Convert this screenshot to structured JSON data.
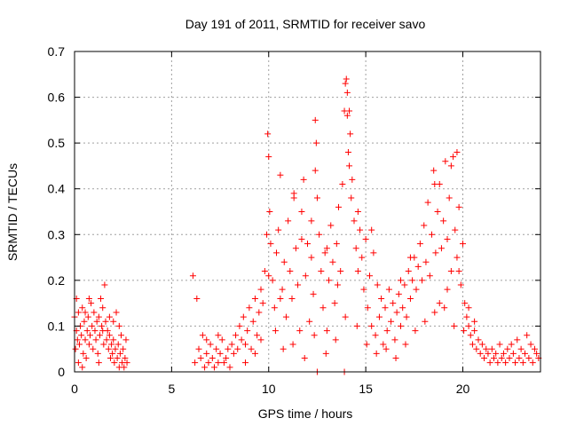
{
  "chart_data": {
    "type": "scatter",
    "title": "Day 191 of 2011, SRMTID for receiver savo",
    "xlabel": "GPS time / hours",
    "ylabel": "SRMTID / TECUs",
    "xlim": [
      0,
      24
    ],
    "ylim": [
      0,
      0.7
    ],
    "xticks": [
      0,
      5,
      10,
      15,
      20
    ],
    "yticks": [
      0,
      0.1,
      0.2,
      0.3,
      0.4,
      0.5,
      0.6,
      0.7
    ],
    "xtick_labels": [
      "0",
      "5",
      "10",
      "15",
      "20"
    ],
    "ytick_labels": [
      "0",
      "0.1",
      "0.2",
      "0.3",
      "0.4",
      "0.5",
      "0.6",
      "0.7"
    ],
    "grid": true,
    "marker": "+",
    "marker_color": "#ff0000",
    "series": [
      {
        "name": "SRMTID",
        "points": [
          [
            0.0,
            0.12
          ],
          [
            0.05,
            0.05
          ],
          [
            0.1,
            0.09
          ],
          [
            0.15,
            0.07
          ],
          [
            0.2,
            0.13
          ],
          [
            0.25,
            0.06
          ],
          [
            0.3,
            0.1
          ],
          [
            0.35,
            0.08
          ],
          [
            0.4,
            0.14
          ],
          [
            0.45,
            0.04
          ],
          [
            0.5,
            0.11
          ],
          [
            0.55,
            0.07
          ],
          [
            0.6,
            0.03
          ],
          [
            0.65,
            0.09
          ],
          [
            0.7,
            0.12
          ],
          [
            0.75,
            0.06
          ],
          [
            0.8,
            0.08
          ],
          [
            0.85,
            0.15
          ],
          [
            0.9,
            0.1
          ],
          [
            0.95,
            0.05
          ],
          [
            1.0,
            0.13
          ],
          [
            1.05,
            0.09
          ],
          [
            1.1,
            0.07
          ],
          [
            1.15,
            0.11
          ],
          [
            1.2,
            0.04
          ],
          [
            1.25,
            0.12
          ],
          [
            1.3,
            0.08
          ],
          [
            1.35,
            0.16
          ],
          [
            1.4,
            0.1
          ],
          [
            1.45,
            0.14
          ],
          [
            1.5,
            0.06
          ],
          [
            1.55,
            0.19
          ],
          [
            1.6,
            0.11
          ],
          [
            1.65,
            0.07
          ],
          [
            1.7,
            0.09
          ],
          [
            1.75,
            0.05
          ],
          [
            1.8,
            0.08
          ],
          [
            1.85,
            0.03
          ],
          [
            1.9,
            0.06
          ],
          [
            1.95,
            0.04
          ],
          [
            2.0,
            0.07
          ],
          [
            2.05,
            0.02
          ],
          [
            2.1,
            0.05
          ],
          [
            2.15,
            0.13
          ],
          [
            2.2,
            0.03
          ],
          [
            2.25,
            0.06
          ],
          [
            2.3,
            0.01
          ],
          [
            2.35,
            0.04
          ],
          [
            2.4,
            0.08
          ],
          [
            2.45,
            0.02
          ],
          [
            2.5,
            0.05
          ],
          [
            2.55,
            0.01
          ],
          [
            2.6,
            0.03
          ],
          [
            2.65,
            0.07
          ],
          [
            2.7,
            0.02
          ],
          [
            0.2,
            0.02
          ],
          [
            0.55,
            0.13
          ],
          [
            1.25,
            0.02
          ],
          [
            0.1,
            0.16
          ],
          [
            1.8,
            0.12
          ],
          [
            2.3,
            0.1
          ],
          [
            0.75,
            0.16
          ],
          [
            1.45,
            0.09
          ],
          [
            0.4,
            0.01
          ],
          [
            2.0,
            0.11
          ],
          [
            6.1,
            0.21
          ],
          [
            6.2,
            0.02
          ],
          [
            6.3,
            0.16
          ],
          [
            6.4,
            0.05
          ],
          [
            6.5,
            0.03
          ],
          [
            6.6,
            0.08
          ],
          [
            6.7,
            0.01
          ],
          [
            6.8,
            0.04
          ],
          [
            6.9,
            0.02
          ],
          [
            7.0,
            0.06
          ],
          [
            7.1,
            0.03
          ],
          [
            7.2,
            0.01
          ],
          [
            7.3,
            0.05
          ],
          [
            7.4,
            0.02
          ],
          [
            7.5,
            0.04
          ],
          [
            7.6,
            0.07
          ],
          [
            7.7,
            0.02
          ],
          [
            7.8,
            0.03
          ],
          [
            7.9,
            0.05
          ],
          [
            8.0,
            0.01
          ],
          [
            8.1,
            0.06
          ],
          [
            8.2,
            0.04
          ],
          [
            8.3,
            0.08
          ],
          [
            8.4,
            0.05
          ],
          [
            8.5,
            0.1
          ],
          [
            8.6,
            0.07
          ],
          [
            8.7,
            0.12
          ],
          [
            8.8,
            0.06
          ],
          [
            8.9,
            0.09
          ],
          [
            9.0,
            0.14
          ],
          [
            9.1,
            0.05
          ],
          [
            9.2,
            0.11
          ],
          [
            9.3,
            0.16
          ],
          [
            9.4,
            0.08
          ],
          [
            9.5,
            0.13
          ],
          [
            9.6,
            0.07
          ],
          [
            9.7,
            0.15
          ],
          [
            9.8,
            0.22
          ],
          [
            9.9,
            0.3
          ],
          [
            9.95,
            0.52
          ],
          [
            10.0,
            0.47
          ],
          [
            10.05,
            0.35
          ],
          [
            10.1,
            0.28
          ],
          [
            10.2,
            0.2
          ],
          [
            10.3,
            0.14
          ],
          [
            10.4,
            0.26
          ],
          [
            10.5,
            0.31
          ],
          [
            10.6,
            0.43
          ],
          [
            10.7,
            0.18
          ],
          [
            10.8,
            0.24
          ],
          [
            10.9,
            0.12
          ],
          [
            11.0,
            0.33
          ],
          [
            11.1,
            0.22
          ],
          [
            11.2,
            0.16
          ],
          [
            11.3,
            0.38
          ],
          [
            11.4,
            0.27
          ],
          [
            11.5,
            0.19
          ],
          [
            11.6,
            0.09
          ],
          [
            11.7,
            0.35
          ],
          [
            11.8,
            0.42
          ],
          [
            11.9,
            0.21
          ],
          [
            12.0,
            0.28
          ],
          [
            12.1,
            0.11
          ],
          [
            12.2,
            0.25
          ],
          [
            12.3,
            0.17
          ],
          [
            12.4,
            0.55
          ],
          [
            12.45,
            0.5
          ],
          [
            12.5,
            0.38
          ],
          [
            12.6,
            0.3
          ],
          [
            12.7,
            0.22
          ],
          [
            12.8,
            0.14
          ],
          [
            12.9,
            0.26
          ],
          [
            13.0,
            0.09
          ],
          [
            13.1,
            0.2
          ],
          [
            13.2,
            0.32
          ],
          [
            13.3,
            0.24
          ],
          [
            13.4,
            0.15
          ],
          [
            13.5,
            0.28
          ],
          [
            13.6,
            0.36
          ],
          [
            13.7,
            0.22
          ],
          [
            13.8,
            0.41
          ],
          [
            13.9,
            0.57
          ],
          [
            14.0,
            0.64
          ],
          [
            14.05,
            0.61
          ],
          [
            14.1,
            0.48
          ],
          [
            14.15,
            0.45
          ],
          [
            14.2,
            0.52
          ],
          [
            14.25,
            0.38
          ],
          [
            14.3,
            0.42
          ],
          [
            14.4,
            0.33
          ],
          [
            14.5,
            0.27
          ],
          [
            14.6,
            0.22
          ],
          [
            14.7,
            0.31
          ],
          [
            14.8,
            0.25
          ],
          [
            14.9,
            0.18
          ],
          [
            15.0,
            0.29
          ],
          [
            15.1,
            0.14
          ],
          [
            15.2,
            0.21
          ],
          [
            15.3,
            0.1
          ],
          [
            15.4,
            0.26
          ],
          [
            15.5,
            0.08
          ],
          [
            15.6,
            0.19
          ],
          [
            15.7,
            0.12
          ],
          [
            15.8,
            0.16
          ],
          [
            15.9,
            0.06
          ],
          [
            16.0,
            0.14
          ],
          [
            16.1,
            0.09
          ],
          [
            16.2,
            0.18
          ],
          [
            16.3,
            0.11
          ],
          [
            16.4,
            0.15
          ],
          [
            16.5,
            0.07
          ],
          [
            16.6,
            0.13
          ],
          [
            16.7,
            0.17
          ],
          [
            16.8,
            0.1
          ],
          [
            16.9,
            0.14
          ],
          [
            17.0,
            0.19
          ],
          [
            17.1,
            0.12
          ],
          [
            17.2,
            0.22
          ],
          [
            17.3,
            0.16
          ],
          [
            17.4,
            0.2
          ],
          [
            17.5,
            0.25
          ],
          [
            17.6,
            0.18
          ],
          [
            17.7,
            0.23
          ],
          [
            17.8,
            0.28
          ],
          [
            17.9,
            0.2
          ],
          [
            18.0,
            0.32
          ],
          [
            18.1,
            0.24
          ],
          [
            18.2,
            0.37
          ],
          [
            18.3,
            0.21
          ],
          [
            18.4,
            0.3
          ],
          [
            18.5,
            0.44
          ],
          [
            18.6,
            0.26
          ],
          [
            18.7,
            0.35
          ],
          [
            18.8,
            0.41
          ],
          [
            18.9,
            0.27
          ],
          [
            19.0,
            0.33
          ],
          [
            19.1,
            0.46
          ],
          [
            19.2,
            0.29
          ],
          [
            19.3,
            0.38
          ],
          [
            19.4,
            0.22
          ],
          [
            19.5,
            0.47
          ],
          [
            19.6,
            0.31
          ],
          [
            19.7,
            0.25
          ],
          [
            19.8,
            0.36
          ],
          [
            19.9,
            0.19
          ],
          [
            20.0,
            0.28
          ],
          [
            20.1,
            0.15
          ],
          [
            20.2,
            0.12
          ],
          [
            20.3,
            0.1
          ],
          [
            20.4,
            0.08
          ],
          [
            20.5,
            0.06
          ],
          [
            20.6,
            0.09
          ],
          [
            20.7,
            0.05
          ],
          [
            20.8,
            0.07
          ],
          [
            20.9,
            0.04
          ],
          [
            21.0,
            0.06
          ],
          [
            21.1,
            0.03
          ],
          [
            21.2,
            0.05
          ],
          [
            21.3,
            0.04
          ],
          [
            21.4,
            0.02
          ],
          [
            21.5,
            0.05
          ],
          [
            21.6,
            0.03
          ],
          [
            21.7,
            0.04
          ],
          [
            21.8,
            0.02
          ],
          [
            21.9,
            0.06
          ],
          [
            22.0,
            0.03
          ],
          [
            22.1,
            0.04
          ],
          [
            22.2,
            0.02
          ],
          [
            22.3,
            0.05
          ],
          [
            22.4,
            0.03
          ],
          [
            22.5,
            0.06
          ],
          [
            22.6,
            0.04
          ],
          [
            22.7,
            0.02
          ],
          [
            22.8,
            0.07
          ],
          [
            22.9,
            0.03
          ],
          [
            23.0,
            0.05
          ],
          [
            23.1,
            0.02
          ],
          [
            23.2,
            0.04
          ],
          [
            23.3,
            0.08
          ],
          [
            23.4,
            0.03
          ],
          [
            23.5,
            0.06
          ],
          [
            23.6,
            0.02
          ],
          [
            23.7,
            0.05
          ],
          [
            23.8,
            0.04
          ],
          [
            23.9,
            0.03
          ],
          [
            10.35,
            0.09
          ],
          [
            10.75,
            0.05
          ],
          [
            11.25,
            0.06
          ],
          [
            11.85,
            0.03
          ],
          [
            12.35,
            0.08
          ],
          [
            12.95,
            0.04
          ],
          [
            13.45,
            0.07
          ],
          [
            13.95,
            0.12
          ],
          [
            14.55,
            0.1
          ],
          [
            15.05,
            0.06
          ],
          [
            15.55,
            0.04
          ],
          [
            16.05,
            0.05
          ],
          [
            16.55,
            0.03
          ],
          [
            17.05,
            0.06
          ],
          [
            17.55,
            0.09
          ],
          [
            18.05,
            0.11
          ],
          [
            18.55,
            0.13
          ],
          [
            19.05,
            0.14
          ],
          [
            19.55,
            0.1
          ],
          [
            20.05,
            0.09
          ],
          [
            12.5,
            0.0
          ],
          [
            13.9,
            0.0
          ],
          [
            14.05,
            0.56
          ],
          [
            14.15,
            0.57
          ],
          [
            13.95,
            0.63
          ],
          [
            12.4,
            0.44
          ],
          [
            19.4,
            0.45
          ],
          [
            19.7,
            0.48
          ],
          [
            18.55,
            0.41
          ],
          [
            11.3,
            0.39
          ],
          [
            10.0,
            0.21
          ],
          [
            10.6,
            0.16
          ],
          [
            11.7,
            0.29
          ],
          [
            12.2,
            0.33
          ],
          [
            13.0,
            0.27
          ],
          [
            13.55,
            0.19
          ],
          [
            14.6,
            0.35
          ],
          [
            15.3,
            0.31
          ],
          [
            16.8,
            0.2
          ],
          [
            17.3,
            0.25
          ],
          [
            18.8,
            0.15
          ],
          [
            19.2,
            0.18
          ],
          [
            19.8,
            0.22
          ],
          [
            20.3,
            0.14
          ],
          [
            20.6,
            0.11
          ],
          [
            9.6,
            0.18
          ],
          [
            9.3,
            0.04
          ],
          [
            8.8,
            0.02
          ],
          [
            7.4,
            0.08
          ],
          [
            6.8,
            0.07
          ]
        ]
      }
    ]
  }
}
